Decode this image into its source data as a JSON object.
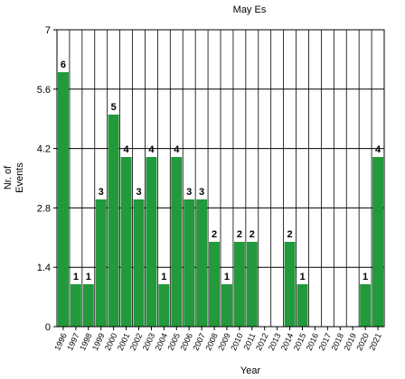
{
  "chart_data": {
    "type": "bar",
    "title": "May Es",
    "xlabel": "Year",
    "ylabel": "Nr. of Events",
    "ylim": [
      0,
      7
    ],
    "yticks": [
      "0",
      "1.4",
      "2.8",
      "4.2",
      "5.6",
      "7"
    ],
    "grid": true,
    "bar_color": "#22993a",
    "categories": [
      "1996",
      "1997",
      "1998",
      "1999",
      "2000",
      "2001",
      "2002",
      "2003",
      "2004",
      "2005",
      "2006",
      "2007",
      "2008",
      "2009",
      "2010",
      "2011",
      "2012",
      "2013",
      "2014",
      "2015",
      "2016",
      "2017",
      "2018",
      "2019",
      "2020",
      "2021"
    ],
    "values": [
      6,
      1,
      1,
      3,
      5,
      4,
      3,
      4,
      1,
      4,
      3,
      3,
      2,
      1,
      2,
      2,
      0,
      0,
      2,
      1,
      0,
      0,
      0,
      0,
      1,
      4
    ]
  }
}
